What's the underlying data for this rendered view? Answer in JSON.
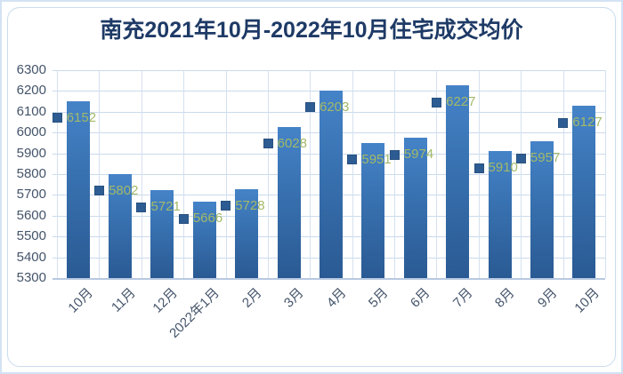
{
  "chart_data": {
    "type": "bar",
    "title": "南充2021年10月-2022年10月住宅成交均价",
    "categories": [
      "10月",
      "11月",
      "12月",
      "2022年1月",
      "2月",
      "3月",
      "4月",
      "5月",
      "6月",
      "7月",
      "8月",
      "9月",
      "10月"
    ],
    "values": [
      6152,
      5802,
      5721,
      5666,
      5728,
      6028,
      6203,
      5951,
      5974,
      6227,
      5910,
      5957,
      6127
    ],
    "xlabel": "",
    "ylabel": "",
    "ylim": [
      5300,
      6300
    ],
    "ytick_step": 100,
    "yticks": [
      6300,
      6200,
      6100,
      6000,
      5900,
      5800,
      5700,
      5600,
      5500,
      5400,
      5300
    ],
    "grid": true,
    "legend_position": "none",
    "data_labels": {
      "show": true,
      "legend_key": true,
      "position": "inside-end"
    },
    "colors": {
      "bar_top": "#4583c8",
      "bar_bottom": "#2a5a93",
      "legend_key": "#2d5c93",
      "label_text": "#a3b969",
      "title_text": "#1e3a66",
      "axis_text": "#44546a",
      "gridline": "#cbdaec",
      "axis_line": "#b7c9e0",
      "frame_border": "#c9dcef"
    }
  }
}
